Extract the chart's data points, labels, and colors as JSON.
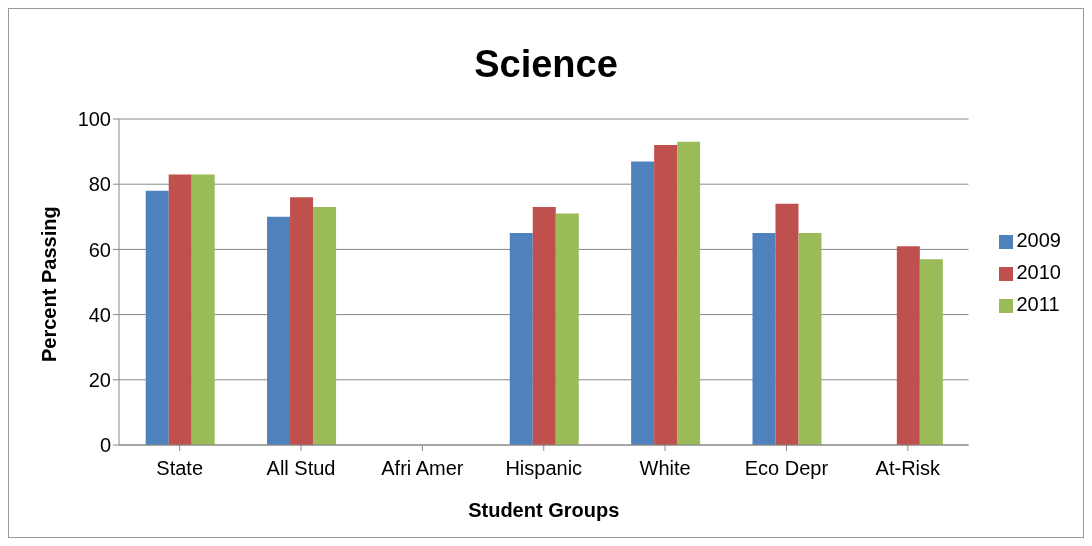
{
  "chart_data": {
    "type": "bar",
    "title": "Science",
    "xlabel": "Student Groups",
    "ylabel": "Percent Passing",
    "categories": [
      "State",
      "All Stud",
      "Afri Amer",
      "Hispanic",
      "White",
      "Eco Depr",
      "At-Risk"
    ],
    "series": [
      {
        "name": "2009",
        "color": "#4f81bd",
        "values": [
          78,
          70,
          null,
          65,
          87,
          65,
          null
        ]
      },
      {
        "name": "2010",
        "color": "#c0504d",
        "values": [
          83,
          76,
          null,
          73,
          92,
          74,
          61
        ]
      },
      {
        "name": "2011",
        "color": "#9bbb59",
        "values": [
          83,
          73,
          null,
          71,
          93,
          65,
          57
        ]
      }
    ],
    "ylim": [
      0,
      100
    ],
    "yticks": [
      0,
      20,
      40,
      60,
      80,
      100
    ],
    "grid": "y",
    "legend": "right"
  }
}
